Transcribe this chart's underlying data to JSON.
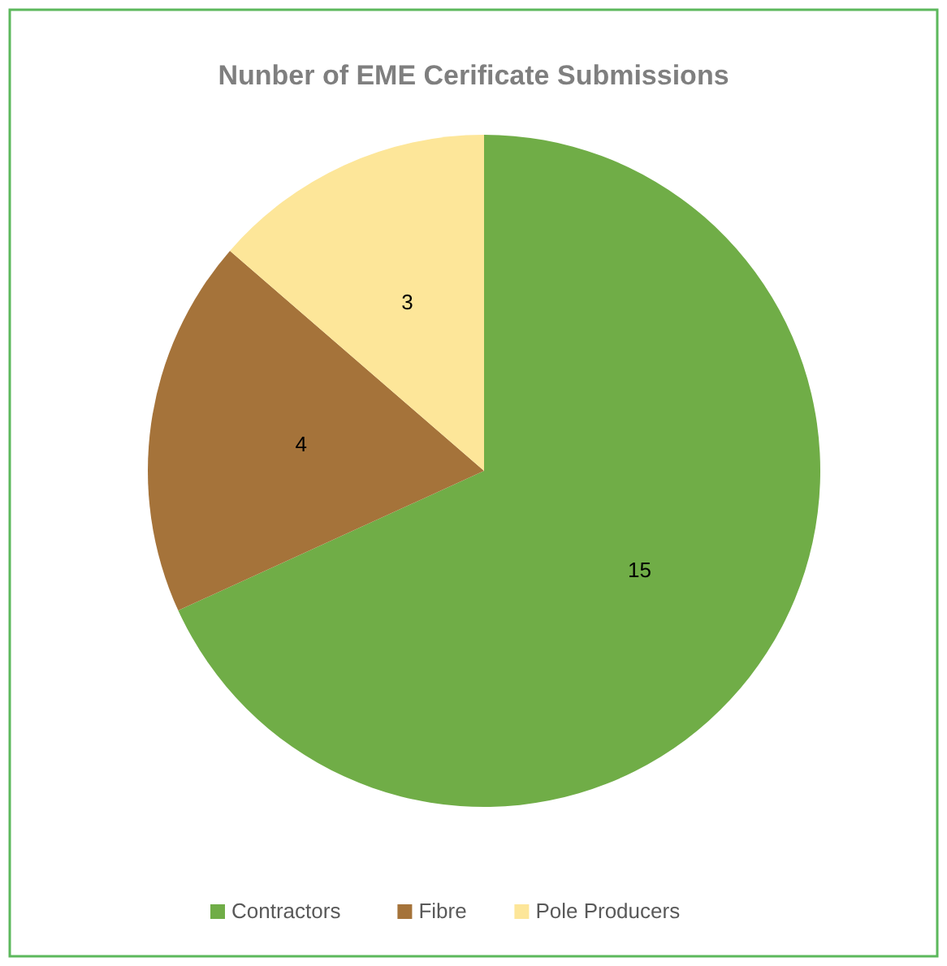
{
  "chart_data": {
    "type": "pie",
    "title": "Nunber of EME Cerificate Submissions",
    "categories": [
      "Contractors",
      "Fibre",
      "Pole Producers"
    ],
    "values": [
      15,
      4,
      3
    ],
    "colors": [
      "#70ad47",
      "#a5733a",
      "#fde699"
    ],
    "data_labels": true,
    "legend": "bottom"
  }
}
